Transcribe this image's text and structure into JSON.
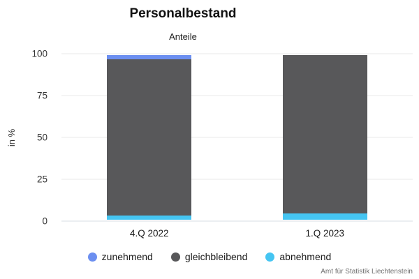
{
  "title": "Personalbestand",
  "subtitle": "Anteile",
  "source": "Amt für Statistik Liechtenstein",
  "chart_data": {
    "type": "bar",
    "stacked": true,
    "title": "Personalbestand",
    "subtitle": "Anteile",
    "categories": [
      "4.Q 2022",
      "1.Q 2023"
    ],
    "series": [
      {
        "name": "zunehmend",
        "color": "#6c8ff0",
        "values": [
          2.4,
          0
        ]
      },
      {
        "name": "gleichbleibend",
        "color": "#58585a",
        "values": [
          95.1,
          96.3
        ]
      },
      {
        "name": "abnehmend",
        "color": "#45c5f2",
        "values": [
          2.5,
          3.7
        ]
      }
    ],
    "xlabel": "",
    "ylabel": "in %",
    "ylim": [
      0,
      100
    ],
    "yticks": [
      0,
      25,
      50,
      75,
      100
    ],
    "grid": true,
    "legend_position": "bottom",
    "colors": {
      "background": "#ffffff",
      "gridline": "#eaeaea",
      "zero_line": "#d7dde6",
      "text": "#1a1a1a"
    }
  }
}
